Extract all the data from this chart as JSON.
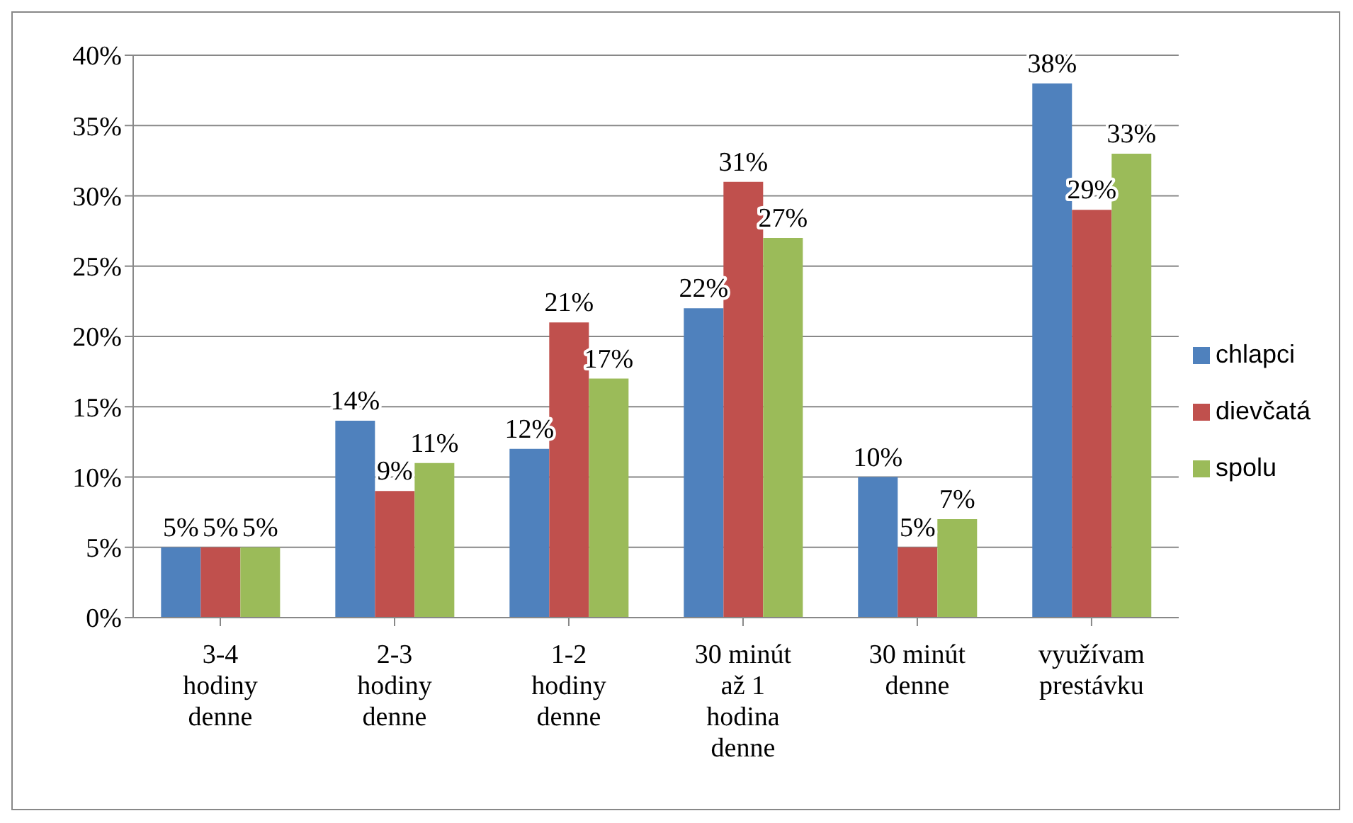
{
  "chart_data": {
    "type": "bar",
    "categories": [
      "3-4 hodiny denne",
      "2-3 hodiny denne",
      "1-2 hodiny denne",
      "30 minút až 1 hodina denne",
      "30 minút denne",
      "využívam prestávku"
    ],
    "series": [
      {
        "name": "chlapci",
        "color": "#4f81bd",
        "values": [
          5,
          14,
          12,
          22,
          10,
          38
        ],
        "value_labels": [
          "5%",
          "14%",
          "12%",
          "22%",
          "10%",
          "38%"
        ]
      },
      {
        "name": "dievčatá",
        "color": "#c0504d",
        "values": [
          5,
          9,
          21,
          31,
          5,
          29
        ],
        "value_labels": [
          "5%",
          "9%",
          "21%",
          "31%",
          "5%",
          "29%"
        ]
      },
      {
        "name": "spolu",
        "color": "#9bbb59",
        "values": [
          5,
          11,
          17,
          27,
          7,
          33
        ],
        "value_labels": [
          "5%",
          "11%",
          "17%",
          "27%",
          "7%",
          "33%"
        ]
      }
    ],
    "ylim": [
      0,
      40
    ],
    "yticks": [
      {
        "value": 0,
        "label": "0%"
      },
      {
        "value": 5,
        "label": "5%"
      },
      {
        "value": 10,
        "label": "10%"
      },
      {
        "value": 15,
        "label": "15%"
      },
      {
        "value": 20,
        "label": "20%"
      },
      {
        "value": 25,
        "label": "25%"
      },
      {
        "value": 30,
        "label": "30%"
      },
      {
        "value": 35,
        "label": "35%"
      },
      {
        "value": 40,
        "label": "40%"
      }
    ],
    "grid": "y",
    "legend": "right"
  }
}
